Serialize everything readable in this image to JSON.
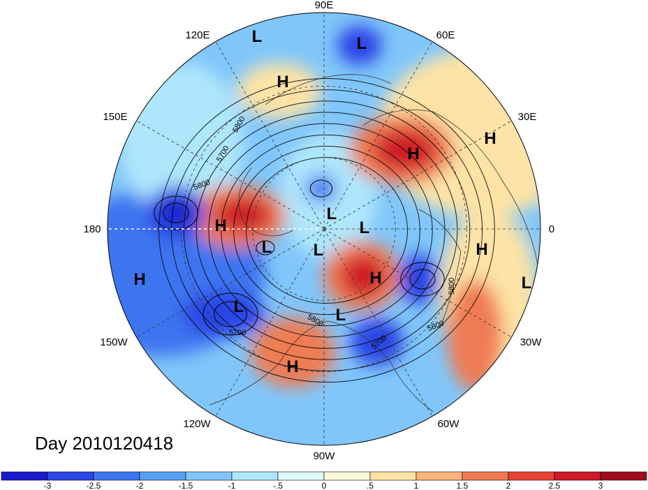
{
  "date_label": "Day 2010120418",
  "longitude_labels": [
    {
      "text": "90E"
    },
    {
      "text": "60E"
    },
    {
      "text": "30E"
    },
    {
      "text": "0"
    },
    {
      "text": "30W"
    },
    {
      "text": "60W"
    },
    {
      "text": "90W"
    },
    {
      "text": "120W"
    },
    {
      "text": "150W"
    },
    {
      "text": "180"
    },
    {
      "text": "150E"
    },
    {
      "text": "120E"
    }
  ],
  "pressure_centers": [
    {
      "type": "L"
    },
    {
      "type": "L"
    },
    {
      "type": "H"
    },
    {
      "type": "H"
    },
    {
      "type": "H"
    },
    {
      "type": "L"
    },
    {
      "type": "H"
    },
    {
      "type": "L"
    },
    {
      "type": "L"
    },
    {
      "type": "L"
    },
    {
      "type": "L"
    },
    {
      "type": "H"
    },
    {
      "type": "H"
    },
    {
      "type": "L"
    },
    {
      "type": "H"
    },
    {
      "type": "L"
    },
    {
      "type": "H"
    }
  ],
  "contour_labels": [
    "5800",
    "5700",
    "5800",
    "5700",
    "5800",
    "5800",
    "5800",
    "5700"
  ],
  "colorbar": {
    "ticks": [
      "-3",
      "-2.5",
      "-2",
      "-1.5",
      "-1",
      "-.5",
      "0",
      ".5",
      "1",
      "1.5",
      "2",
      "2.5",
      "3"
    ],
    "colors": [
      "#1a1acd",
      "#2b45e6",
      "#3e74f0",
      "#5aa0f6",
      "#80c6fa",
      "#aee6fc",
      "#dff7fd",
      "#fdf9dc",
      "#fde3a6",
      "#f8b47a",
      "#f07b52",
      "#e84236",
      "#cf1a28",
      "#a00d1c"
    ]
  },
  "map_colors": {
    "background": "#80c6fa",
    "strong_low": "#2b45e6",
    "low": "#3e74f0",
    "mild_low": "#aee6fc",
    "mild_high": "#fde3a6",
    "high": "#f07b52",
    "strong_high": "#cf1a28"
  }
}
